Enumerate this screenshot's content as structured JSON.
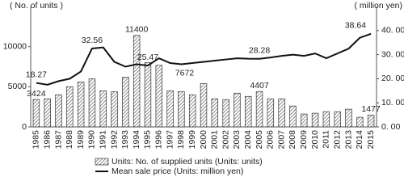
{
  "chart_data": {
    "type": "bar-line",
    "y_axis_label": "( No. of units )",
    "y2_axis_label": "( million yen)",
    "categories": [
      "1985",
      "1986",
      "1987",
      "1988",
      "1989",
      "1990",
      "1991",
      "1992",
      "1993",
      "1994",
      "1995",
      "1996",
      "1997",
      "1998",
      "1999",
      "2000",
      "2001",
      "2002",
      "2003",
      "2004",
      "2005",
      "2006",
      "2007",
      "2008",
      "2009",
      "2010",
      "2011",
      "2012",
      "2013",
      "2014",
      "2015"
    ],
    "ylim": [
      0,
      15000
    ],
    "yticks": [
      0,
      5000,
      10000
    ],
    "y2lim": [
      0,
      50
    ],
    "y2ticks": [
      {
        "value": 0,
        "label": "0. 00"
      },
      {
        "value": 10,
        "label": "10. 00"
      },
      {
        "value": 20,
        "label": "20. 00"
      },
      {
        "value": 30,
        "label": "30. 00"
      },
      {
        "value": 40,
        "label": "40. 00"
      }
    ],
    "series": [
      {
        "name": "Units: No. of supplied units (Units: units)",
        "kind": "bar",
        "color": "#333333",
        "values": [
          3424,
          3500,
          4000,
          5000,
          5600,
          6000,
          4500,
          4400,
          6200,
          11400,
          8000,
          7672,
          4500,
          4400,
          4000,
          5400,
          3500,
          3400,
          4200,
          3800,
          4407,
          3500,
          3500,
          2600,
          1600,
          1700,
          1900,
          1900,
          2200,
          1200,
          1477
        ],
        "value_labels": [
          "3424",
          null,
          null,
          null,
          null,
          null,
          null,
          null,
          null,
          "11400",
          null,
          "7672",
          null,
          null,
          null,
          null,
          null,
          null,
          null,
          null,
          "4407",
          null,
          null,
          null,
          null,
          null,
          null,
          null,
          null,
          null,
          "1477"
        ]
      },
      {
        "name": "Mean sale price (Units: million yen)",
        "kind": "line",
        "axis": "y2",
        "color": "#111111",
        "values": [
          18.27,
          17.5,
          19,
          20,
          23,
          32.56,
          33,
          27,
          25,
          26,
          25.47,
          28.5,
          26.5,
          26,
          26.5,
          27,
          27.5,
          28,
          28.5,
          28.3,
          28.28,
          28.8,
          29.5,
          30,
          29.5,
          30.5,
          28.5,
          30.5,
          32.5,
          37,
          38.64
        ],
        "value_labels": [
          "18.27",
          null,
          null,
          null,
          null,
          "32.56",
          null,
          null,
          null,
          null,
          "25.47",
          null,
          null,
          null,
          null,
          null,
          null,
          null,
          null,
          null,
          "28.28",
          null,
          null,
          null,
          null,
          null,
          null,
          null,
          null,
          null,
          "38.64"
        ]
      }
    ]
  }
}
